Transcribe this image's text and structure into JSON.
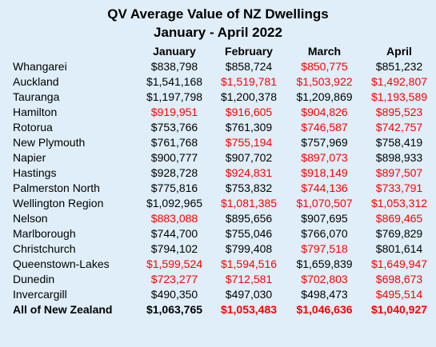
{
  "title_line1": "QV Average Value of NZ Dwellings",
  "title_line2": "January - April 2022",
  "columns": [
    "January",
    "February",
    "March",
    "April"
  ],
  "rows": [
    {
      "region": "Whangarei",
      "values": [
        "$838,798",
        "$858,724",
        "$850,775",
        "$851,232"
      ],
      "red": [
        false,
        false,
        true,
        false
      ]
    },
    {
      "region": "Auckland",
      "values": [
        "$1,541,168",
        "$1,519,781",
        "$1,503,922",
        "$1,492,807"
      ],
      "red": [
        false,
        true,
        true,
        true
      ]
    },
    {
      "region": "Tauranga",
      "values": [
        "$1,197,798",
        "$1,200,378",
        "$1,209,869",
        "$1,193,589"
      ],
      "red": [
        false,
        false,
        false,
        true
      ]
    },
    {
      "region": "Hamilton",
      "values": [
        "$919,951",
        "$916,605",
        "$904,826",
        "$895,523"
      ],
      "red": [
        true,
        true,
        true,
        true
      ]
    },
    {
      "region": "Rotorua",
      "values": [
        "$753,766",
        "$761,309",
        "$746,587",
        "$742,757"
      ],
      "red": [
        false,
        false,
        true,
        true
      ]
    },
    {
      "region": "New Plymouth",
      "values": [
        "$761,768",
        "$755,194",
        "$757,969",
        "$758,419"
      ],
      "red": [
        false,
        true,
        false,
        false
      ]
    },
    {
      "region": "Napier",
      "values": [
        "$900,777",
        "$907,702",
        "$897,073",
        "$898,933"
      ],
      "red": [
        false,
        false,
        true,
        false
      ]
    },
    {
      "region": "Hastings",
      "values": [
        "$928,728",
        "$924,831",
        "$918,149",
        "$897,507"
      ],
      "red": [
        false,
        true,
        true,
        true
      ]
    },
    {
      "region": "Palmerston North",
      "values": [
        "$775,816",
        "$753,832",
        "$744,136",
        "$733,791"
      ],
      "red": [
        false,
        false,
        true,
        true
      ]
    },
    {
      "region": "Wellington Region",
      "values": [
        "$1,092,965",
        "$1,081,385",
        "$1,070,507",
        "$1,053,312"
      ],
      "red": [
        false,
        true,
        true,
        true
      ]
    },
    {
      "region": "Nelson",
      "values": [
        "$883,088",
        "$895,656",
        "$907,695",
        "$869,465"
      ],
      "red": [
        true,
        false,
        false,
        true
      ]
    },
    {
      "region": "Marlborough",
      "values": [
        "$744,700",
        "$755,046",
        "$766,070",
        "$769,829"
      ],
      "red": [
        false,
        false,
        false,
        false
      ]
    },
    {
      "region": "Christchurch",
      "values": [
        "$794,102",
        "$799,408",
        "$797,518",
        "$801,614"
      ],
      "red": [
        false,
        false,
        true,
        false
      ]
    },
    {
      "region": "Queenstown-Lakes",
      "values": [
        "$1,599,524",
        "$1,594,516",
        "$1,659,839",
        "$1,649,947"
      ],
      "red": [
        true,
        true,
        false,
        true
      ]
    },
    {
      "region": "Dunedin",
      "values": [
        "$723,277",
        "$712,581",
        "$702,803",
        "$698,673"
      ],
      "red": [
        true,
        true,
        true,
        true
      ]
    },
    {
      "region": "Invercargill",
      "values": [
        "$490,350",
        "$497,030",
        "$498,473",
        "$495,514"
      ],
      "red": [
        false,
        false,
        false,
        true
      ]
    }
  ],
  "total": {
    "region": "All of New Zealand",
    "values": [
      "$1,063,765",
      "$1,053,483",
      "$1,046,636",
      "$1,040,927"
    ],
    "red": [
      false,
      true,
      true,
      true
    ]
  },
  "colors": {
    "background": "#dfeef8",
    "decrease": "#ff0000",
    "text": "#000000"
  }
}
